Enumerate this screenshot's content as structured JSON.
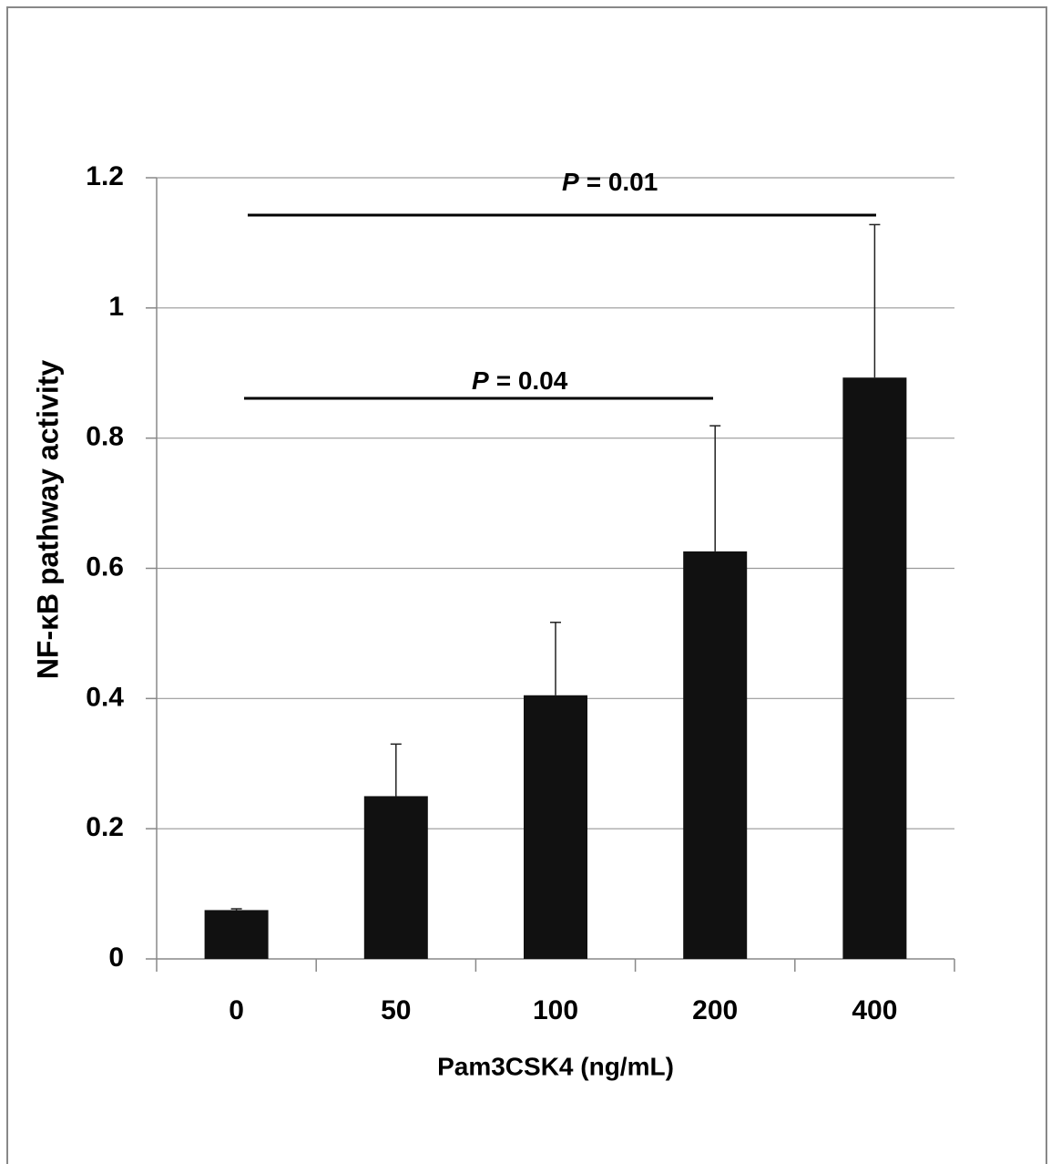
{
  "chart_data": {
    "type": "bar",
    "xlabel": "Pam3CSK4 (ng/mL)",
    "ylabel": "NF-κB pathway activity",
    "categories": [
      "0",
      "50",
      "100",
      "200",
      "400"
    ],
    "values": [
      0.075,
      0.25,
      0.405,
      0.626,
      0.893
    ],
    "errors": [
      0.002,
      0.08,
      0.112,
      0.193,
      0.235
    ],
    "color": "#111111",
    "ylim": [
      0,
      1.2
    ],
    "yticks": [
      0,
      0.2,
      0.4,
      0.6,
      0.8,
      1,
      1.2
    ],
    "grid": true,
    "annotations": [
      {
        "emphasis": "P",
        "text": "= 0.01"
      },
      {
        "emphasis": "P",
        "text": "= 0.04"
      }
    ]
  }
}
